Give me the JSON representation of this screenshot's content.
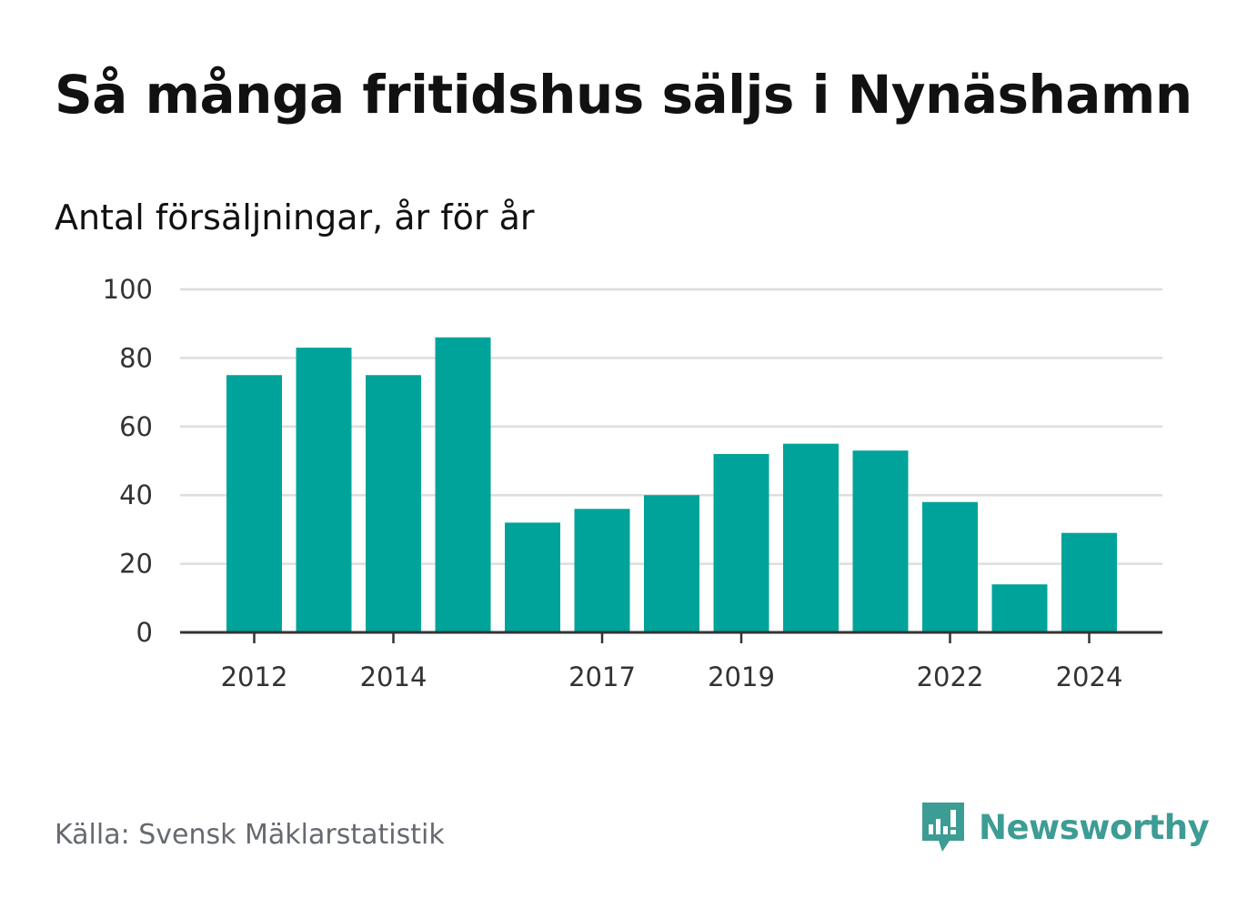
{
  "title": "Så många fritidshus säljs i Nynäshamn",
  "subtitle": "Antal försäljningar, år för år",
  "source": "Källa: Svensk Mäklarstatistik",
  "brand": {
    "name": "Newsworthy",
    "icon": "newsworthy-logo-icon",
    "color": "#3d9c94"
  },
  "colors": {
    "bar": "#00a39a",
    "grid": "#dddddd",
    "axis": "#333333"
  },
  "chart_data": {
    "type": "bar",
    "title": "Så många fritidshus säljs i Nynäshamn",
    "subtitle": "Antal försäljningar, år för år",
    "categories": [
      "2012",
      "2013",
      "2014",
      "2015",
      "2016",
      "2017",
      "2018",
      "2019",
      "2020",
      "2021",
      "2022",
      "2023",
      "2024"
    ],
    "values": [
      75,
      83,
      75,
      86,
      32,
      36,
      40,
      52,
      55,
      53,
      38,
      14,
      29
    ],
    "x_tick_labels": [
      "2012",
      "2014",
      "2017",
      "2019",
      "2022",
      "2024"
    ],
    "y_ticks": [
      0,
      20,
      40,
      60,
      80,
      100
    ],
    "ylim": [
      0,
      100
    ],
    "grid": true,
    "legend": "none"
  }
}
